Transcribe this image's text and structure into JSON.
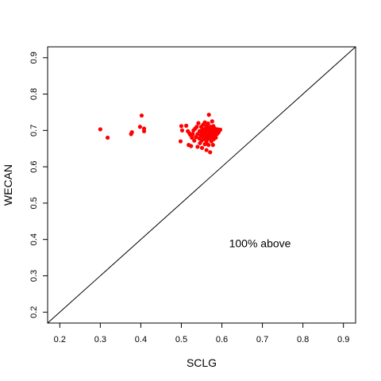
{
  "chart_data": {
    "type": "scatter",
    "title": "",
    "xlabel": "SCLG",
    "ylabel": "WECAN",
    "xlim": [
      0.17,
      0.93
    ],
    "ylim": [
      0.17,
      0.93
    ],
    "x_ticks": [
      "0.2",
      "0.3",
      "0.4",
      "0.5",
      "0.6",
      "0.7",
      "0.8",
      "0.9"
    ],
    "y_ticks": [
      "0.2",
      "0.3",
      "0.4",
      "0.5",
      "0.6",
      "0.7",
      "0.8",
      "0.9"
    ],
    "grid": false,
    "legend": "none",
    "reference_line": {
      "type": "identity",
      "from": [
        0.17,
        0.17
      ],
      "to": [
        0.93,
        0.93
      ]
    },
    "annotation": {
      "text": "100% above",
      "x": 0.6,
      "y": 0.39
    },
    "point_color": "#ff0000",
    "series": [
      {
        "points": [
          [
            0.3,
            0.703
          ],
          [
            0.318,
            0.68
          ],
          [
            0.376,
            0.69
          ],
          [
            0.378,
            0.695
          ],
          [
            0.398,
            0.71
          ],
          [
            0.402,
            0.741
          ],
          [
            0.408,
            0.705
          ],
          [
            0.408,
            0.698
          ],
          [
            0.498,
            0.67
          ],
          [
            0.5,
            0.712
          ],
          [
            0.502,
            0.7
          ],
          [
            0.512,
            0.713
          ],
          [
            0.516,
            0.698
          ],
          [
            0.518,
            0.66
          ],
          [
            0.52,
            0.692
          ],
          [
            0.522,
            0.688
          ],
          [
            0.524,
            0.657
          ],
          [
            0.526,
            0.68
          ],
          [
            0.528,
            0.69
          ],
          [
            0.53,
            0.7
          ],
          [
            0.532,
            0.672
          ],
          [
            0.534,
            0.705
          ],
          [
            0.536,
            0.682
          ],
          [
            0.538,
            0.71
          ],
          [
            0.54,
            0.69
          ],
          [
            0.54,
            0.655
          ],
          [
            0.542,
            0.72
          ],
          [
            0.544,
            0.678
          ],
          [
            0.545,
            0.698
          ],
          [
            0.546,
            0.665
          ],
          [
            0.548,
            0.686
          ],
          [
            0.549,
            0.71
          ],
          [
            0.55,
            0.694
          ],
          [
            0.55,
            0.672
          ],
          [
            0.551,
            0.652
          ],
          [
            0.552,
            0.704
          ],
          [
            0.553,
            0.683
          ],
          [
            0.554,
            0.716
          ],
          [
            0.555,
            0.69
          ],
          [
            0.556,
            0.676
          ],
          [
            0.557,
            0.7
          ],
          [
            0.558,
            0.662
          ],
          [
            0.558,
            0.722
          ],
          [
            0.559,
            0.688
          ],
          [
            0.56,
            0.706
          ],
          [
            0.56,
            0.68
          ],
          [
            0.561,
            0.694
          ],
          [
            0.562,
            0.668
          ],
          [
            0.562,
            0.646
          ],
          [
            0.563,
            0.712
          ],
          [
            0.564,
            0.684
          ],
          [
            0.564,
            0.698
          ],
          [
            0.565,
            0.676
          ],
          [
            0.566,
            0.692
          ],
          [
            0.566,
            0.719
          ],
          [
            0.567,
            0.704
          ],
          [
            0.567,
            0.66
          ],
          [
            0.568,
            0.743
          ],
          [
            0.568,
            0.686
          ],
          [
            0.569,
            0.7
          ],
          [
            0.57,
            0.678
          ],
          [
            0.57,
            0.69
          ],
          [
            0.571,
            0.64
          ],
          [
            0.572,
            0.71
          ],
          [
            0.572,
            0.695
          ],
          [
            0.573,
            0.682
          ],
          [
            0.574,
            0.7
          ],
          [
            0.574,
            0.67
          ],
          [
            0.575,
            0.688
          ],
          [
            0.576,
            0.725
          ],
          [
            0.576,
            0.702
          ],
          [
            0.577,
            0.684
          ],
          [
            0.578,
            0.695
          ],
          [
            0.578,
            0.66
          ],
          [
            0.579,
            0.712
          ],
          [
            0.58,
            0.69
          ],
          [
            0.58,
            0.676
          ],
          [
            0.581,
            0.7
          ],
          [
            0.582,
            0.686
          ],
          [
            0.583,
            0.705
          ],
          [
            0.584,
            0.694
          ],
          [
            0.585,
            0.68
          ],
          [
            0.586,
            0.698
          ],
          [
            0.588,
            0.69
          ],
          [
            0.59,
            0.703
          ],
          [
            0.592,
            0.695
          ],
          [
            0.594,
            0.7
          ],
          [
            0.596,
            0.702
          ]
        ]
      }
    ]
  }
}
